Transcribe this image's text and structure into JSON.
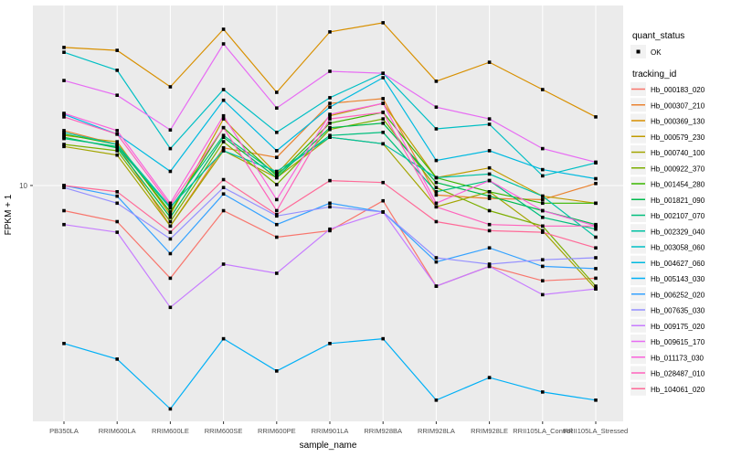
{
  "figure": {
    "background": "#FFFFFF",
    "panel_bg": "#EBEBEB",
    "grid_color": "#FFFFFF",
    "tick_text_color": "#4D4D4D",
    "axis_tick_color": "#333333",
    "title_text_color": "#000000",
    "point_color": "#000000",
    "legend_key_bg": "#F2F2F2"
  },
  "chart_data": {
    "type": "line",
    "title": "",
    "xlabel": "sample_name",
    "ylabel": "FPKM + 1",
    "y_scale": "log10",
    "ylim": [
      0.973,
      59.2
    ],
    "y_ticks": [
      {
        "value": 10,
        "label": "10"
      }
    ],
    "grid": true,
    "legend_position": "right",
    "categories": [
      "PB350LA",
      "RRIM600LA",
      "RRIM600LE",
      "RRIM600SE",
      "RRIM600PE",
      "RRIM901LA",
      "RRIM928BA",
      "RRIM928LA",
      "RRIM928LE",
      "RRII105LA_Control",
      "RRII105LA_Stressed"
    ],
    "series": [
      {
        "name": "Hb_000183_020",
        "color": "#F8766D",
        "values": [
          7.8,
          7.0,
          4.0,
          7.8,
          6.0,
          6.4,
          8.6,
          3.7,
          4.5,
          3.9,
          4.0
        ]
      },
      {
        "name": "Hb_000307_210",
        "color": "#EA8331",
        "values": [
          17.2,
          15.0,
          6.7,
          14.5,
          13.2,
          22.5,
          23.6,
          9.1,
          8.8,
          8.7,
          10.2
        ]
      },
      {
        "name": "Hb_000369_130",
        "color": "#D89000",
        "values": [
          39.1,
          38.0,
          26.5,
          46.8,
          25.1,
          45.6,
          49.9,
          28.0,
          33.8,
          25.8,
          19.7
        ]
      },
      {
        "name": "Hb_000579_230",
        "color": "#C09B00",
        "values": [
          16.4,
          15.4,
          7.5,
          19.3,
          11.2,
          19.9,
          22.5,
          10.8,
          11.9,
          9.0,
          8.4
        ]
      },
      {
        "name": "Hb_000740_100",
        "color": "#A3A500",
        "values": [
          14.7,
          13.5,
          6.7,
          14.1,
          10.8,
          16.1,
          15.1,
          8.1,
          9.4,
          6.4,
          3.6
        ]
      },
      {
        "name": "Hb_000922_370",
        "color": "#7CAE00",
        "values": [
          15.0,
          14.1,
          7.0,
          15.4,
          10.1,
          17.4,
          19.3,
          9.8,
          7.8,
          6.7,
          3.7
        ]
      },
      {
        "name": "Hb_001454_280",
        "color": "#39B600",
        "values": [
          16.6,
          15.0,
          7.7,
          17.7,
          11.0,
          18.5,
          20.6,
          10.8,
          9.4,
          8.4,
          8.4
        ]
      },
      {
        "name": "Hb_001821_090",
        "color": "#00BB4E",
        "values": [
          16.1,
          14.5,
          7.3,
          16.1,
          10.8,
          17.7,
          18.5,
          10.3,
          9.0,
          7.8,
          6.8
        ]
      },
      {
        "name": "Hb_002107_070",
        "color": "#00BF7D",
        "values": [
          15.9,
          14.7,
          8.0,
          16.4,
          11.2,
          16.4,
          16.9,
          9.4,
          10.5,
          7.3,
          6.5
        ]
      },
      {
        "name": "Hb_002329_040",
        "color": "#00C1A3",
        "values": [
          16.9,
          15.0,
          8.1,
          14.1,
          11.5,
          16.1,
          15.1,
          10.8,
          11.2,
          9.0,
          6.0
        ]
      },
      {
        "name": "Hb_003058_060",
        "color": "#00BFC4",
        "values": [
          37.3,
          31.2,
          14.4,
          25.8,
          16.9,
          23.8,
          30.3,
          17.5,
          18.3,
          11.0,
          12.5
        ]
      },
      {
        "name": "Hb_004627_060",
        "color": "#00BAE0",
        "values": [
          20.2,
          16.6,
          11.5,
          23.2,
          14.1,
          21.7,
          29.0,
          12.8,
          14.1,
          11.7,
          10.7
        ]
      },
      {
        "name": "Hb_005143_030",
        "color": "#00B0F6",
        "values": [
          2.1,
          1.8,
          1.1,
          2.2,
          1.6,
          2.1,
          2.2,
          1.2,
          1.5,
          1.3,
          1.2
        ]
      },
      {
        "name": "Hb_006252_020",
        "color": "#35A2FF",
        "values": [
          10.0,
          9.0,
          5.1,
          9.2,
          6.8,
          8.4,
          7.7,
          4.7,
          5.4,
          4.5,
          4.4
        ]
      },
      {
        "name": "Hb_007635_030",
        "color": "#9590FF",
        "values": [
          9.8,
          8.4,
          5.9,
          9.8,
          7.4,
          8.1,
          7.7,
          4.9,
          4.6,
          4.8,
          4.9
        ]
      },
      {
        "name": "Hb_009175_020",
        "color": "#C77CFF",
        "values": [
          6.8,
          6.3,
          3.0,
          4.6,
          4.2,
          6.5,
          7.7,
          3.7,
          4.5,
          3.4,
          3.6
        ]
      },
      {
        "name": "Hb_009615_170",
        "color": "#E76BF3",
        "values": [
          28.2,
          24.4,
          17.3,
          40.5,
          21.5,
          30.9,
          30.3,
          21.7,
          19.3,
          14.4,
          12.6
        ]
      },
      {
        "name": "Hb_011173_030",
        "color": "#FA62DB",
        "values": [
          20.4,
          17.2,
          8.4,
          19.9,
          8.7,
          20.2,
          22.5,
          8.4,
          10.5,
          7.8,
          6.7
        ]
      },
      {
        "name": "Hb_028487_010",
        "color": "#FF62BC",
        "values": [
          19.7,
          16.6,
          8.2,
          17.7,
          7.8,
          19.3,
          20.6,
          8.1,
          6.8,
          6.7,
          6.7
        ]
      },
      {
        "name": "Hb_104061_020",
        "color": "#FF6A98",
        "values": [
          10.0,
          9.4,
          6.3,
          10.6,
          7.5,
          10.5,
          10.3,
          7.0,
          6.4,
          6.3,
          5.4
        ]
      }
    ],
    "legend": {
      "quant_status": {
        "title": "quant_status",
        "items": [
          {
            "label": "OK",
            "marker": "point",
            "color": "#000000"
          }
        ]
      },
      "tracking_id": {
        "title": "tracking_id"
      }
    }
  }
}
